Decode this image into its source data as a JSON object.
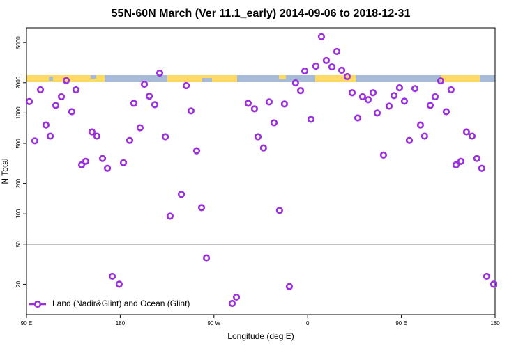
{
  "chart_data": {
    "type": "scatter",
    "title": "55N-60N March (Ver 11.1_early)   2014-09-06 to 2018-12-31",
    "x_label": "Longitude (deg E)",
    "y_label": "N Total",
    "log_y": true,
    "legend_position": "bottom-left",
    "xlim": [
      90,
      540
    ],
    "ylim": [
      10,
      7000
    ],
    "xticks": [
      {
        "value": 90,
        "label": "90 E"
      },
      180,
      {
        "value": 270,
        "label": "90 W"
      },
      {
        "value": 360,
        "label": "0"
      },
      {
        "value": 450,
        "label": "90 E"
      },
      {
        "value": 540,
        "label": "180"
      }
    ],
    "yticks": [
      20,
      50,
      100,
      200,
      500,
      1000,
      2000,
      5000
    ],
    "series": [
      {
        "name": "Land (Nadir&Glint) and Ocean (Glint)",
        "color": "#9b2fe0",
        "x": [
          92.7,
          98,
          103.4,
          108.7,
          112.8,
          118.1,
          123.5,
          128.2,
          133.5,
          137.5,
          142.9,
          146.9,
          152.9,
          157.6,
          163,
          167.7,
          172.4,
          179,
          183.1,
          189.1,
          193.1,
          199.1,
          203.2,
          207.9,
          213.2,
          217.9,
          223.3,
          227.9,
          238.7,
          243.4,
          248,
          253.4,
          258.1,
          262.8,
          287.5,
          291.6,
          302.9,
          308.9,
          312.3,
          317.6,
          323,
          327.7,
          333,
          337.7,
          342.4,
          348.4,
          353.2,
          357.2,
          363.2,
          367.9,
          373.2,
          377.9,
          383.3,
          388,
          392.7,
          398,
          402.7,
          408.1,
          412.7,
          418.1,
          422.8,
          426.8,
          432.8,
          438.2,
          442.9,
          448.2,
          452.9,
          457.6,
          463,
          468.3,
          472.3,
          477.7,
          482.4,
          487.7,
          493.1,
          497.7,
          502.5,
          507.2,
          512.5,
          517.9,
          522.5,
          527.2,
          531.9,
          538.6
        ],
        "values": [
          1300,
          530,
          1700,
          760,
          590,
          1190,
          1450,
          2100,
          1030,
          1700,
          306,
          332,
          650,
          590,
          354,
          283,
          24,
          20,
          321,
          535,
          1250,
          714,
          1930,
          1470,
          1210,
          2490,
          581,
          95,
          156,
          1870,
          1050,
          422,
          115,
          36.5,
          12.9,
          14.9,
          1250,
          1100,
          581,
          450,
          1290,
          800,
          108,
          1230,
          19,
          1990,
          1670,
          2610,
          866,
          2920,
          5710,
          3320,
          2870,
          4080,
          2660,
          2300,
          1590,
          893,
          1450,
          1355,
          1590,
          1000,
          383,
          1170,
          1490,
          1780,
          1310,
          535,
          1750,
          760,
          590,
          1190,
          1450,
          2085,
          1030,
          1700,
          306,
          332,
          650,
          590,
          354,
          283,
          24,
          20
        ]
      }
    ]
  }
}
